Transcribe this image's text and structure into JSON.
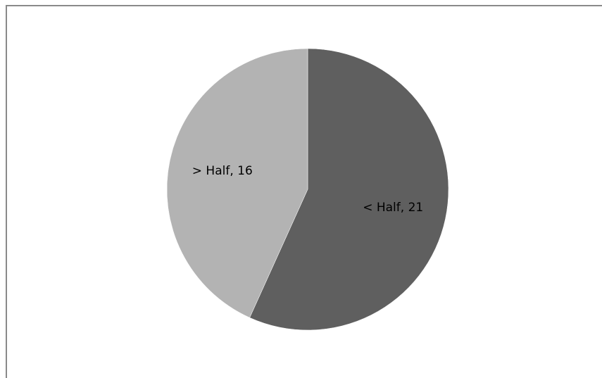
{
  "chart_data": {
    "type": "pie",
    "title": "",
    "slices": [
      {
        "label": "< Half",
        "value": 21,
        "display": "< Half, 21",
        "color": "#5f5f5f"
      },
      {
        "label": "> Half",
        "value": 16,
        "display": "> Half, 16",
        "color": "#b3b3b3"
      }
    ],
    "start_angle_deg": 0,
    "direction": "clockwise",
    "legend": "none",
    "data_labels": "category and value inside slices"
  }
}
